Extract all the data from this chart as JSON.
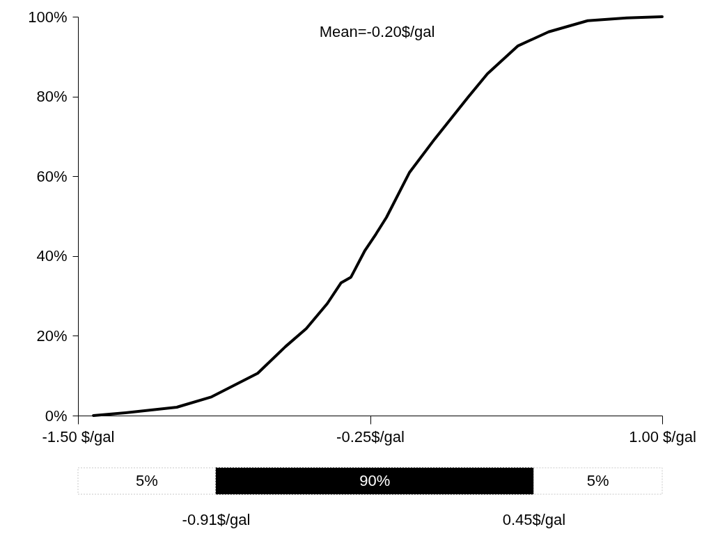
{
  "chart_data": [
    {
      "type": "line",
      "x": [
        -1.434,
        -1.297,
        -1.077,
        -0.928,
        -0.731,
        -0.612,
        -0.523,
        -0.433,
        -0.374,
        -0.332,
        -0.272,
        -0.225,
        -0.18,
        -0.082,
        0.026,
        0.169,
        0.252,
        0.383,
        0.514,
        0.681,
        0.848,
        1.0
      ],
      "series": [
        {
          "color": "#000000",
          "values": [
            0,
            0.7,
            2.1,
            4.7,
            10.6,
            17.3,
            21.8,
            28.1,
            33.3,
            34.7,
            41.4,
            45.5,
            49.7,
            60.9,
            69.3,
            79.8,
            85.7,
            92.7,
            96.2,
            99.0,
            99.7,
            100
          ]
        }
      ],
      "xlim": [
        -1.5,
        1.0
      ],
      "xticks": [
        {
          "value": -1.5,
          "label": "-1.50 $/gal"
        },
        {
          "value": -0.25,
          "label": "-0.25$/gal"
        },
        {
          "value": 1.0,
          "label": "1.00 $/gal"
        }
      ],
      "ylim": [
        0,
        100
      ],
      "yticks": [
        {
          "value": 0,
          "label": "0%"
        },
        {
          "value": 20,
          "label": "20%"
        },
        {
          "value": 40,
          "label": "40%"
        },
        {
          "value": 60,
          "label": "60%"
        },
        {
          "value": 80,
          "label": "80%"
        },
        {
          "value": 100,
          "label": "100%"
        }
      ],
      "annotations": [
        "Mean=-0.20$/gal"
      ],
      "grid": false,
      "line_style": "solid"
    },
    {
      "type": "bar",
      "orientation": "horizontal",
      "categories": [
        null
      ],
      "series": [
        {
          "color": "#ffffff",
          "base": [
            -1.5
          ],
          "values": [
            0.59
          ]
        },
        {
          "color": "#000000",
          "base": [
            -0.91
          ],
          "values": [
            1.36
          ]
        },
        {
          "color": "#ffffff",
          "base": [
            0.45
          ],
          "values": [
            0.55
          ]
        }
      ],
      "annotations": [
        "5%",
        "90%",
        "5%"
      ],
      "xlim": [
        -1.5,
        1.0
      ],
      "xticks": [
        {
          "value": -0.91,
          "label": "-0.91$/gal"
        },
        {
          "value": 0.45,
          "label": "0.45$/gal"
        }
      ],
      "tick_labels": "x",
      "grid": false
    }
  ]
}
